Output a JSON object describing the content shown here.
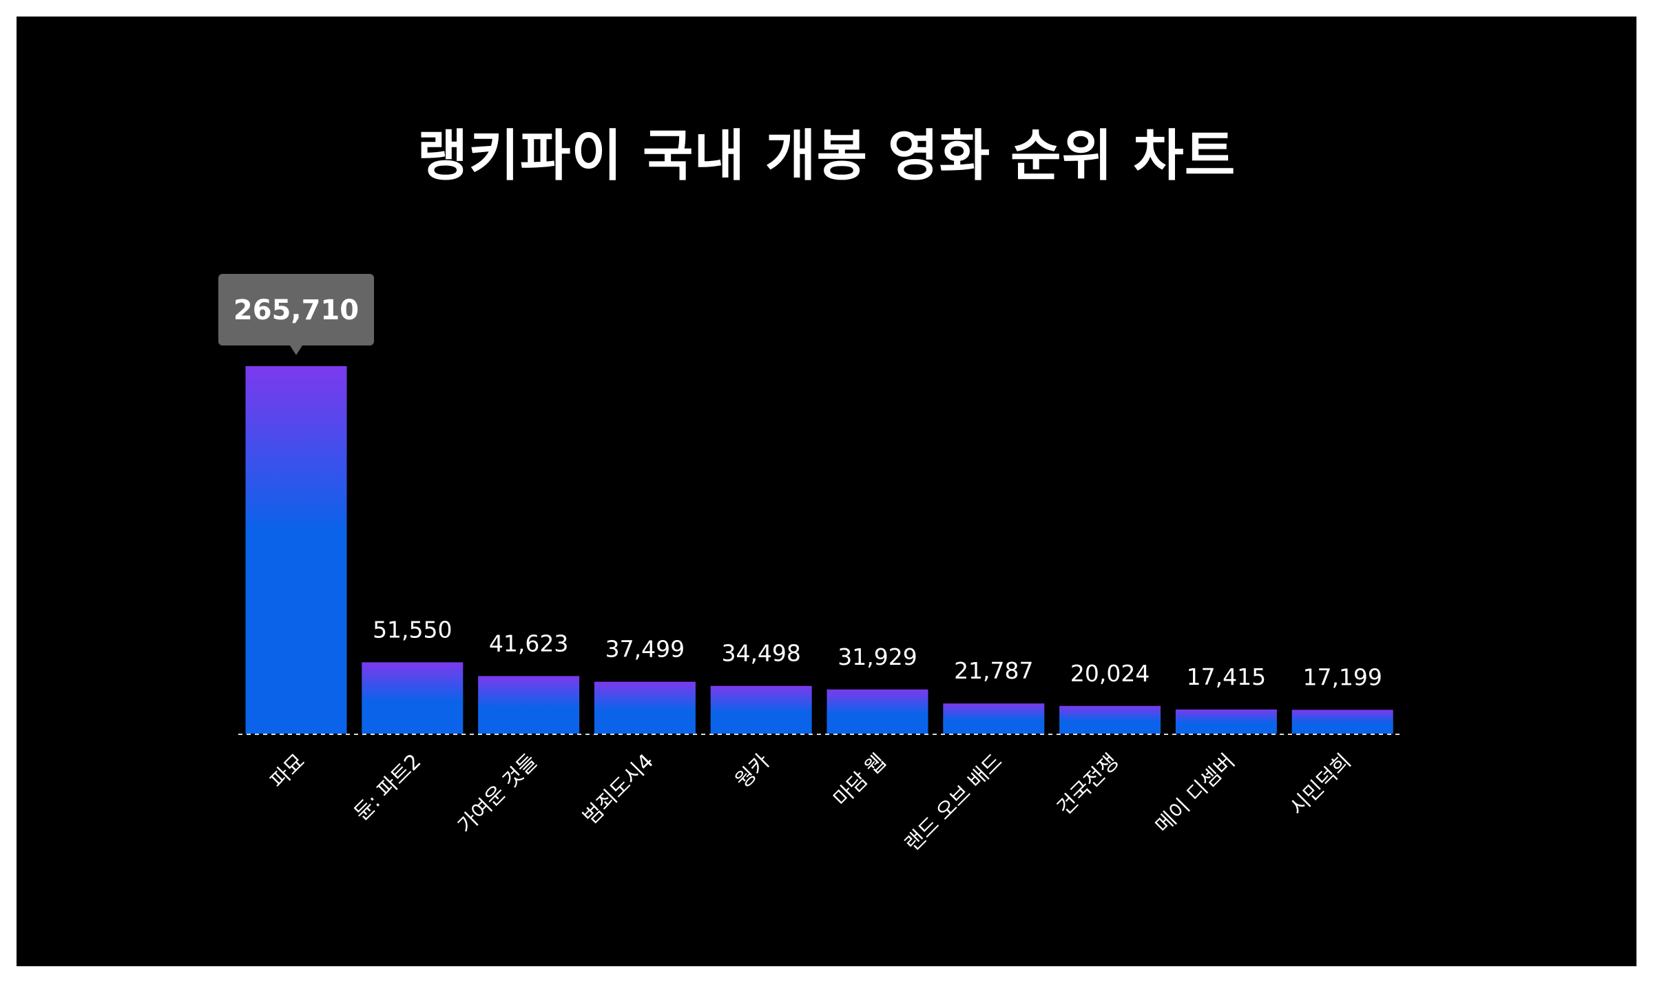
{
  "chart_data": {
    "type": "bar",
    "title": "랭키파이 국내 개봉 영화 순위 차트",
    "categories": [
      "파묘",
      "듄: 파트2",
      "가여운 것들",
      "범죄도시4",
      "웡카",
      "마담 웹",
      "랜드 오브 배드",
      "건국전쟁",
      "메이 디셈버",
      "시민덕희"
    ],
    "values": [
      265710,
      51550,
      41623,
      37499,
      34498,
      31929,
      21787,
      20024,
      17415,
      17199
    ],
    "value_labels": [
      "265,710",
      "51,550",
      "41,623",
      "37,499",
      "34,498",
      "31,929",
      "21,787",
      "20,024",
      "17,415",
      "17,199"
    ],
    "highlighted_index": 0,
    "ylim": [
      0,
      265710
    ],
    "xlabel": "",
    "ylabel": "",
    "grid": false,
    "legend": "none",
    "colors": {
      "background": "#000000",
      "bar_top": "#7c3aed",
      "bar_bottom": "#0b63ea",
      "tooltip": "#666666",
      "text": "#ffffff",
      "baseline": "#dddddd"
    }
  }
}
